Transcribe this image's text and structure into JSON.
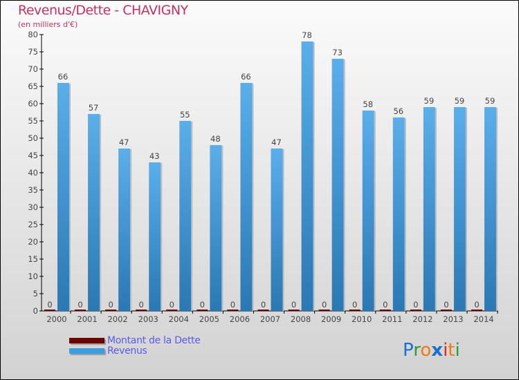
{
  "chart_data": {
    "type": "bar",
    "title": "Revenus/Dette - CHAVIGNY",
    "subtitle": "(en milliers d'€)",
    "xlabel": "",
    "ylabel": "",
    "ylim": [
      0,
      80
    ],
    "yticks": [
      0,
      5,
      10,
      15,
      20,
      25,
      30,
      35,
      40,
      45,
      50,
      55,
      60,
      65,
      70,
      75,
      80
    ],
    "categories": [
      "2000",
      "2001",
      "2002",
      "2003",
      "2004",
      "2005",
      "2006",
      "2007",
      "2008",
      "2009",
      "2010",
      "2011",
      "2012",
      "2013",
      "2014"
    ],
    "series": [
      {
        "name": "Montant de la Dette",
        "color": "#6b0000",
        "values": [
          0,
          0,
          0,
          0,
          0,
          0,
          0,
          0,
          0,
          0,
          0,
          0,
          0,
          0,
          0
        ]
      },
      {
        "name": "Revenus",
        "color": "#3a9ee0",
        "values": [
          66,
          57,
          47,
          43,
          55,
          48,
          66,
          47,
          78,
          73,
          58,
          56,
          59,
          59,
          59
        ]
      }
    ],
    "legend_position": "bottom-left",
    "grid": false
  },
  "logo": "Proxiti"
}
